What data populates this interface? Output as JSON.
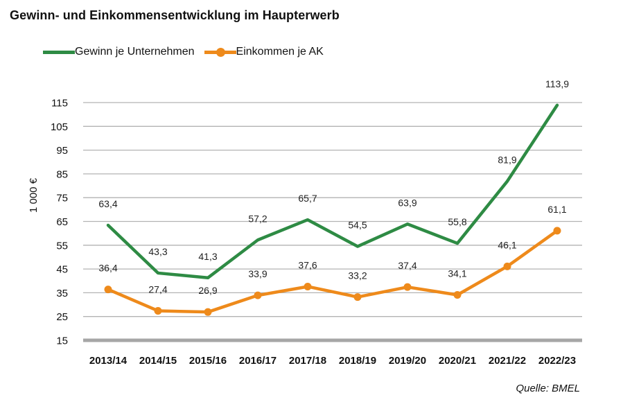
{
  "chart_data": {
    "type": "line",
    "title": "Gewinn- und Einkommensentwicklung im Haupterwerb",
    "xlabel": "",
    "ylabel": "1 000 €",
    "ylim": [
      15,
      115
    ],
    "yticks": [
      "115",
      "105",
      "95",
      "85",
      "75",
      "65",
      "55",
      "45",
      "35",
      "25",
      "15"
    ],
    "categories": [
      "2013/14",
      "2014/15",
      "2015/16",
      "2016/17",
      "2017/18",
      "2018/19",
      "2019/20",
      "2020/21",
      "2021/22",
      "2022/23"
    ],
    "series": [
      {
        "name": "Gewinn je Unternehmen",
        "color": "#2e8b44",
        "markers": false,
        "values": [
          63.4,
          43.3,
          41.3,
          57.2,
          65.7,
          54.5,
          63.9,
          55.8,
          81.9,
          113.9
        ],
        "labels": [
          "63,4",
          "43,3",
          "41,3",
          "57,2",
          "65,7",
          "54,5",
          "63,9",
          "55,8",
          "81,9",
          "113,9"
        ]
      },
      {
        "name": "Einkommen je AK",
        "color": "#ee8a1b",
        "markers": true,
        "values": [
          36.4,
          27.4,
          26.9,
          33.9,
          37.6,
          33.2,
          37.4,
          34.1,
          46.1,
          61.1
        ],
        "labels": [
          "36,4",
          "27,4",
          "26,9",
          "33,9",
          "37,6",
          "33,2",
          "37,4",
          "34,1",
          "46,1",
          "61,1"
        ]
      }
    ],
    "grid": true,
    "legend": "top-left",
    "source": "Quelle: BMEL"
  }
}
